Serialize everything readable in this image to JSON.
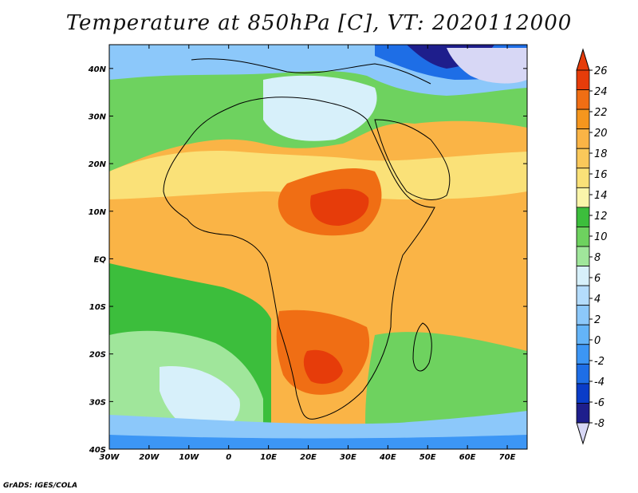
{
  "title": "Temperature at 850hPa [C], VT: 2020112000",
  "credit": "GrADS: IGES/COLA",
  "map": {
    "lon_range": [
      -30,
      75
    ],
    "lat_range": [
      -40,
      45
    ],
    "lon_ticks": [
      {
        "value": -30,
        "label": "30W"
      },
      {
        "value": -20,
        "label": "20W"
      },
      {
        "value": -10,
        "label": "10W"
      },
      {
        "value": 0,
        "label": "0"
      },
      {
        "value": 10,
        "label": "10E"
      },
      {
        "value": 20,
        "label": "20E"
      },
      {
        "value": 30,
        "label": "30E"
      },
      {
        "value": 40,
        "label": "40E"
      },
      {
        "value": 50,
        "label": "50E"
      },
      {
        "value": 60,
        "label": "60E"
      },
      {
        "value": 70,
        "label": "70E"
      }
    ],
    "lat_ticks": [
      {
        "value": 40,
        "label": "40N"
      },
      {
        "value": 30,
        "label": "30N"
      },
      {
        "value": 20,
        "label": "20N"
      },
      {
        "value": 10,
        "label": "10N"
      },
      {
        "value": 0,
        "label": "EQ"
      },
      {
        "value": -10,
        "label": "10S"
      },
      {
        "value": -20,
        "label": "20S"
      },
      {
        "value": -30,
        "label": "30S"
      },
      {
        "value": -40,
        "label": "40S"
      }
    ]
  },
  "colorbar": {
    "levels": [
      -8,
      -6,
      -4,
      -2,
      0,
      2,
      4,
      6,
      8,
      10,
      12,
      14,
      16,
      18,
      20,
      22,
      24,
      26
    ],
    "labels": [
      "-8",
      "-6",
      "-4",
      "-2",
      "0",
      "2",
      "4",
      "6",
      "8",
      "10",
      "12",
      "14",
      "16",
      "18",
      "20",
      "22",
      "24",
      "26"
    ],
    "colors": [
      "#1e1e8c",
      "#0a3cc8",
      "#1e6ee6",
      "#3c96f5",
      "#64b4f8",
      "#8cc8fa",
      "#b4dcfc",
      "#d7f0fa",
      "#a0e69b",
      "#6ed25f",
      "#3cbe3c",
      "#faf5aa",
      "#fae178",
      "#fac85a",
      "#fab446",
      "#f5961e",
      "#f06e14",
      "#e63c0a"
    ],
    "under_color": "#d7d7f5",
    "over_color": "#e63c0a"
  }
}
